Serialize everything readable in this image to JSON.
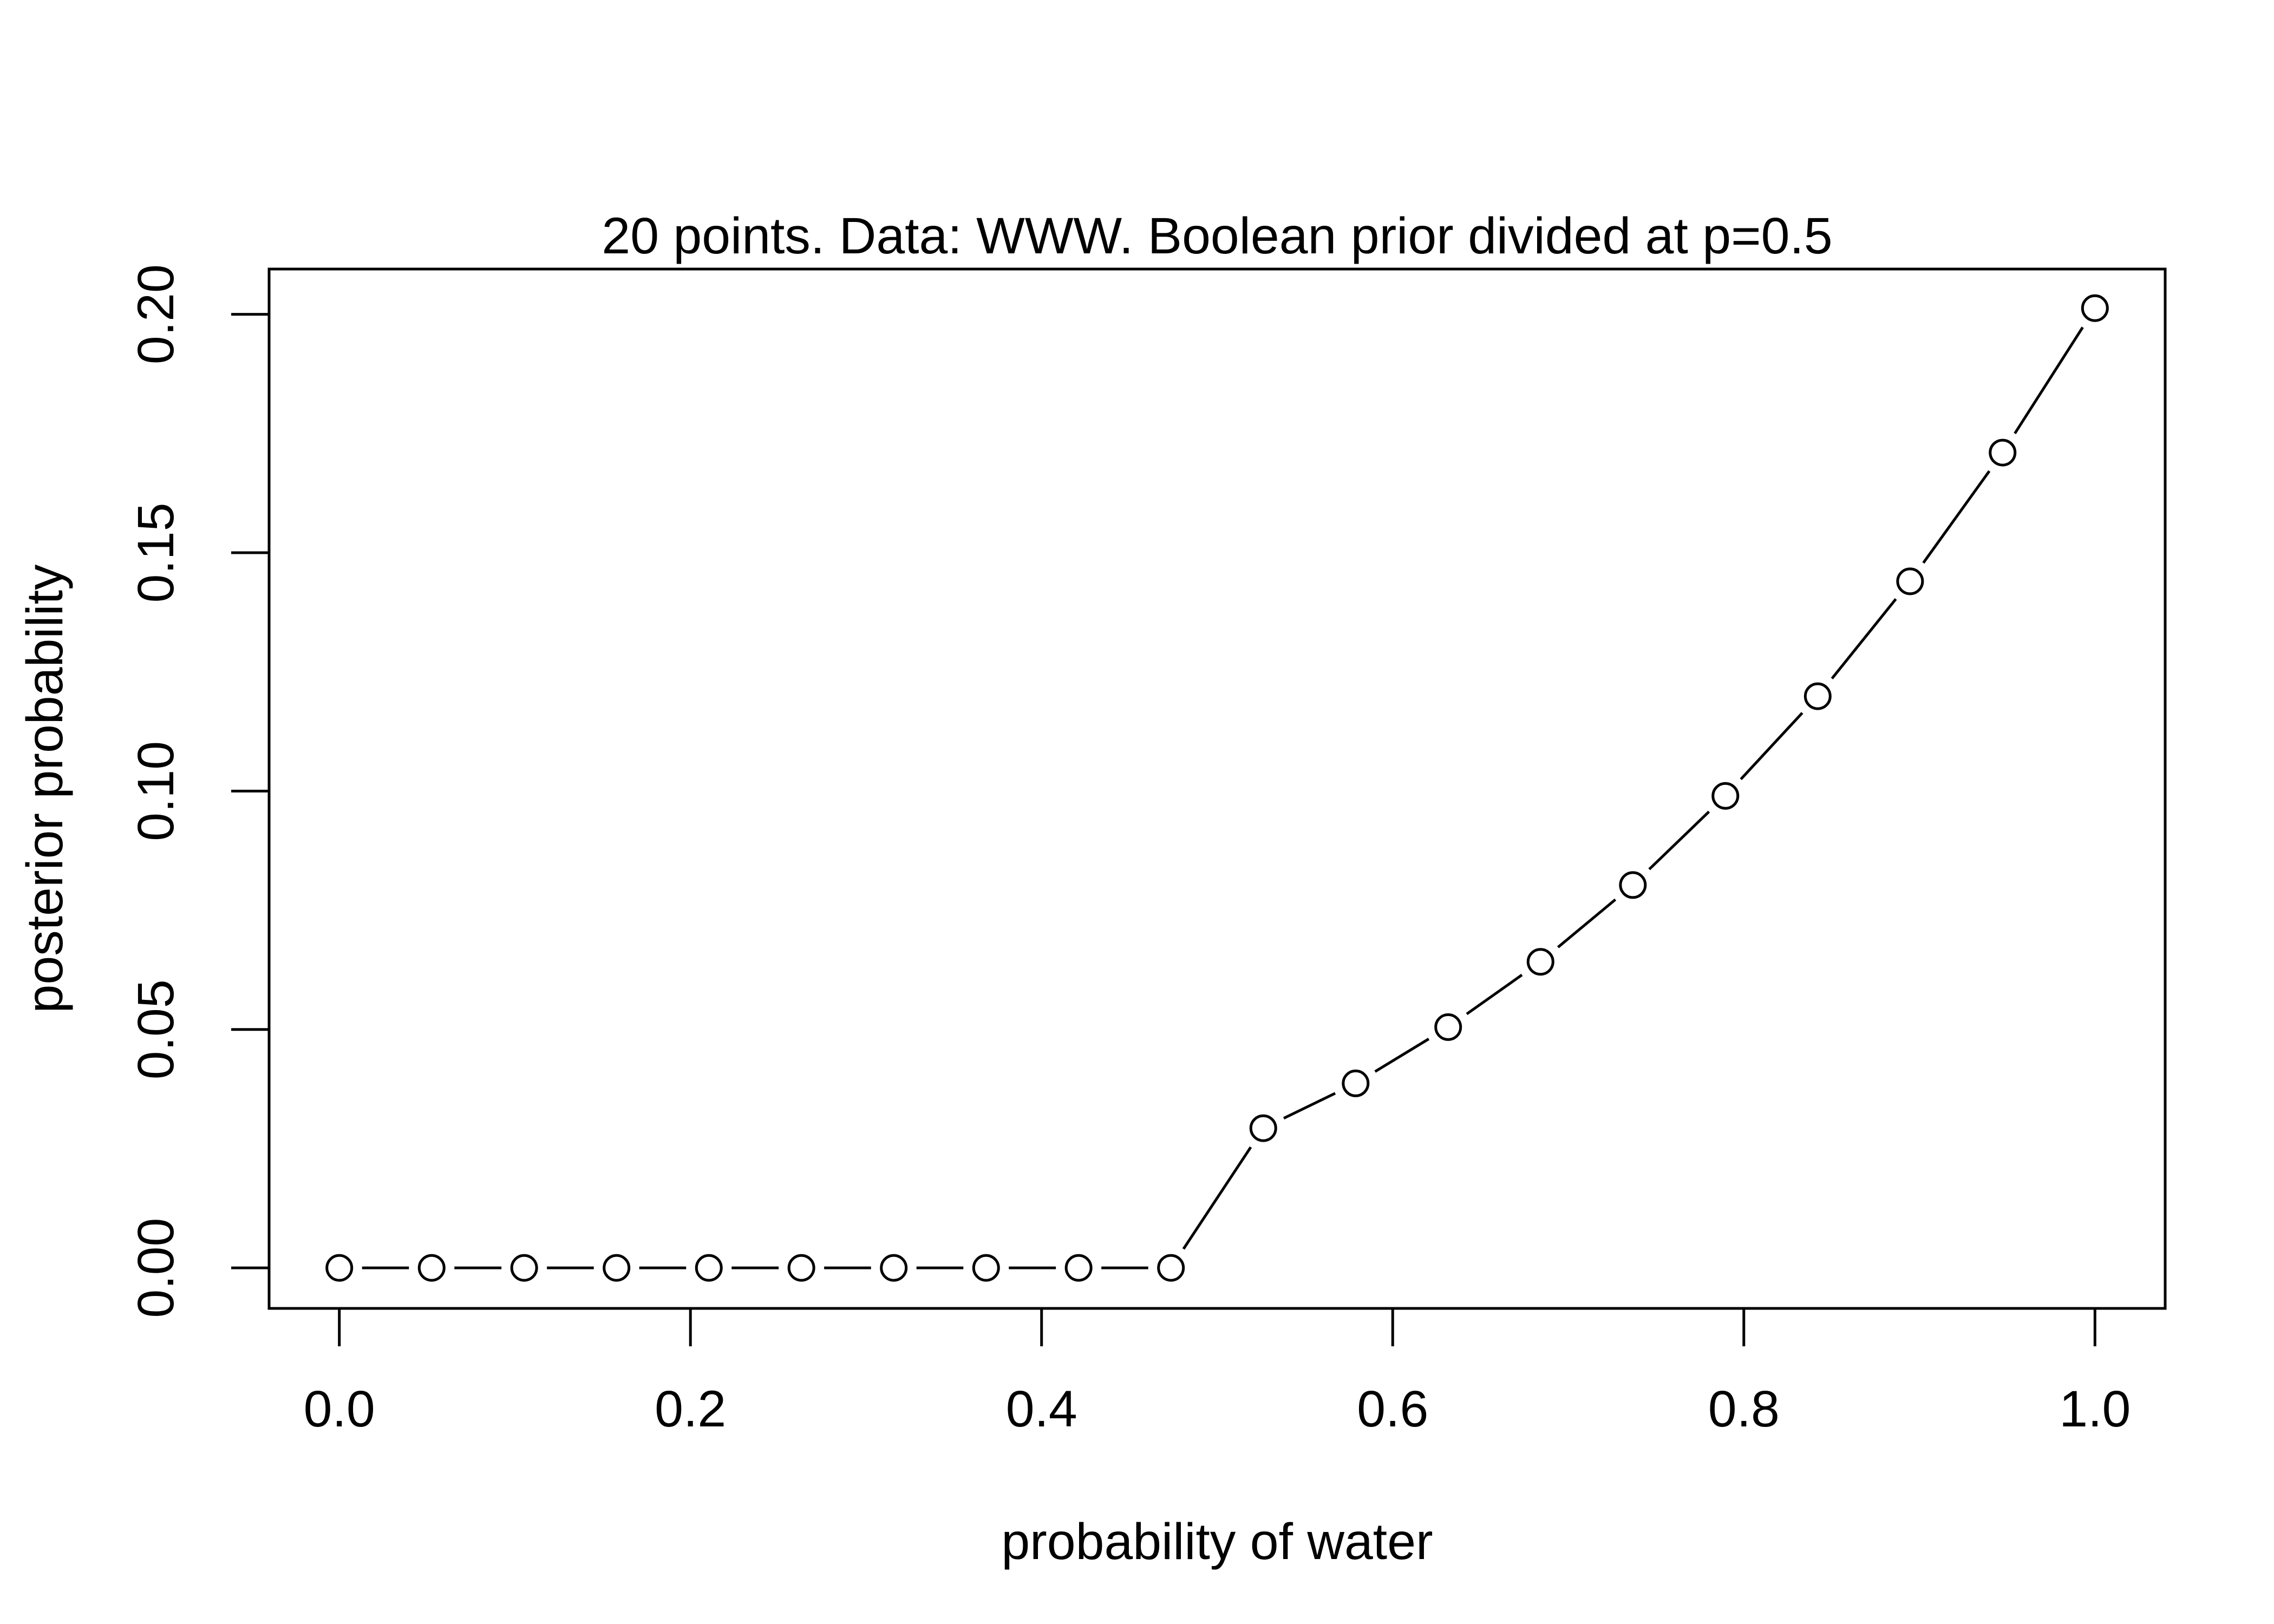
{
  "chart_data": {
    "type": "line",
    "title": "20 points. Data: WWW. Boolean prior divided at p=0.5",
    "xlabel": "probability of water",
    "ylabel": "posterior probability",
    "xlim": [
      -0.04,
      1.04
    ],
    "ylim": [
      -0.0085,
      0.2095
    ],
    "x_ticks": [
      0.0,
      0.2,
      0.4,
      0.6,
      0.8,
      1.0
    ],
    "x_tick_labels": [
      "0.0",
      "0.2",
      "0.4",
      "0.6",
      "0.8",
      "1.0"
    ],
    "y_ticks": [
      0.0,
      0.05,
      0.1,
      0.15,
      0.2
    ],
    "y_tick_labels": [
      "0.00",
      "0.05",
      "0.10",
      "0.15",
      "0.20"
    ],
    "grid": false,
    "marker": "open-circle",
    "line_style": "solid-with-gaps",
    "series": [
      {
        "x": [
          0.0,
          0.0526,
          0.1053,
          0.1579,
          0.2105,
          0.2632,
          0.3158,
          0.3684,
          0.4211,
          0.4737,
          0.5263,
          0.5789,
          0.6316,
          0.6842,
          0.7368,
          0.7895,
          0.8421,
          0.8947,
          0.9474,
          1.0
        ],
        "y": [
          0.0,
          0.0,
          0.0,
          0.0,
          0.0,
          0.0,
          0.0,
          0.0,
          0.0,
          0.0,
          0.0293,
          0.0387,
          0.0505,
          0.0642,
          0.0803,
          0.099,
          0.1199,
          0.144,
          0.171,
          0.2013
        ]
      }
    ]
  }
}
